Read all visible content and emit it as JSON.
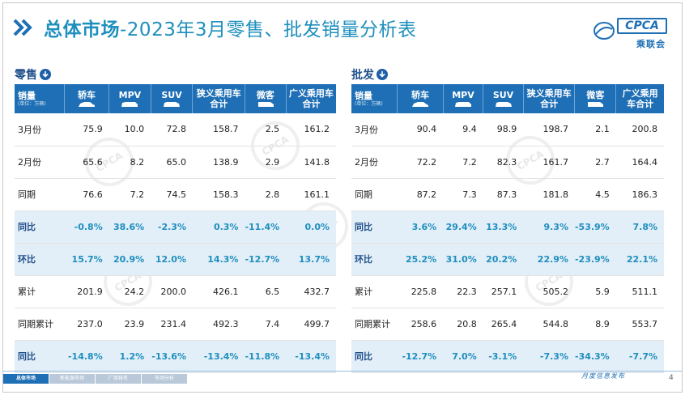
{
  "header": {
    "title_bold": "总体市场",
    "title_rest": "-2023年3月零售、批发销量分析表"
  },
  "logo": {
    "text": "CPCA",
    "sub": "乘联会"
  },
  "columns": [
    "轿车",
    "MPV",
    "SUV",
    "狭义乘用车合计",
    "微客",
    "广义乘用车合计"
  ],
  "retail": {
    "section_label": "零售",
    "corner_label": "销量",
    "unit_label": "(单位：万辆)",
    "rows": [
      {
        "label": "3月份",
        "highlight": false,
        "values": [
          "75.9",
          "10.0",
          "72.8",
          "158.7",
          "2.5",
          "161.2"
        ]
      },
      {
        "label": "2月份",
        "highlight": false,
        "values": [
          "65.6",
          "8.2",
          "65.0",
          "138.9",
          "2.9",
          "141.8"
        ]
      },
      {
        "label": "同期",
        "highlight": false,
        "values": [
          "76.6",
          "7.2",
          "74.5",
          "158.3",
          "2.8",
          "161.1"
        ]
      },
      {
        "label": "同比",
        "highlight": true,
        "values": [
          "-0.8%",
          "38.6%",
          "-2.3%",
          "0.3%",
          "-11.4%",
          "0.0%"
        ]
      },
      {
        "label": "环比",
        "highlight": true,
        "values": [
          "15.7%",
          "20.9%",
          "12.0%",
          "14.3%",
          "-12.7%",
          "13.7%"
        ]
      },
      {
        "label": "累计",
        "highlight": false,
        "values": [
          "201.9",
          "24.2",
          "200.0",
          "426.1",
          "6.5",
          "432.7"
        ]
      },
      {
        "label": "同期累计",
        "highlight": false,
        "values": [
          "237.0",
          "23.9",
          "231.4",
          "492.3",
          "7.4",
          "499.7"
        ]
      },
      {
        "label": "同比",
        "highlight": true,
        "values": [
          "-14.8%",
          "1.2%",
          "-13.6%",
          "-13.4%",
          "-11.8%",
          "-13.4%"
        ]
      }
    ]
  },
  "wholesale": {
    "section_label": "批发",
    "corner_label": "销量",
    "unit_label": "(单位：万辆)",
    "rows": [
      {
        "label": "3月份",
        "highlight": false,
        "values": [
          "90.4",
          "9.4",
          "98.9",
          "198.7",
          "2.1",
          "200.8"
        ]
      },
      {
        "label": "2月份",
        "highlight": false,
        "values": [
          "72.2",
          "7.2",
          "82.3",
          "161.7",
          "2.7",
          "164.4"
        ]
      },
      {
        "label": "同期",
        "highlight": false,
        "values": [
          "87.2",
          "7.3",
          "87.3",
          "181.8",
          "4.5",
          "186.3"
        ]
      },
      {
        "label": "同比",
        "highlight": true,
        "values": [
          "3.6%",
          "29.4%",
          "13.3%",
          "9.3%",
          "-53.9%",
          "7.8%"
        ]
      },
      {
        "label": "环比",
        "highlight": true,
        "values": [
          "25.2%",
          "31.0%",
          "20.2%",
          "22.9%",
          "-23.9%",
          "22.1%"
        ]
      },
      {
        "label": "累计",
        "highlight": false,
        "values": [
          "225.8",
          "22.3",
          "257.1",
          "505.2",
          "5.9",
          "511.1"
        ]
      },
      {
        "label": "同期累计",
        "highlight": false,
        "values": [
          "258.6",
          "20.8",
          "265.4",
          "544.8",
          "8.9",
          "553.7"
        ]
      },
      {
        "label": "同比",
        "highlight": true,
        "values": [
          "-12.7%",
          "7.0%",
          "-3.1%",
          "-7.3%",
          "-34.3%",
          "-7.7%"
        ]
      }
    ]
  },
  "footer": {
    "tabs": [
      "总体市场",
      "新能源市场",
      "厂商排名",
      "市场分析"
    ],
    "text": "月度信息发布",
    "page": "4"
  },
  "colors": {
    "accent": "#1e8fbd",
    "header_bg": "#1e6fb5",
    "highlight_bg": "#e2eef8"
  }
}
